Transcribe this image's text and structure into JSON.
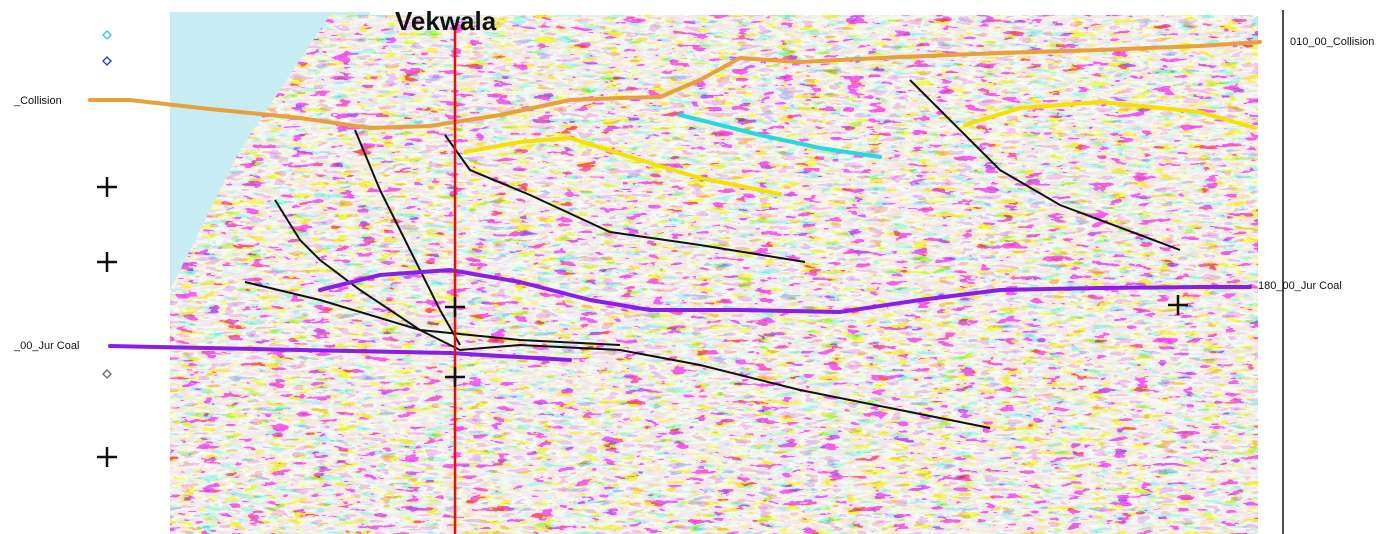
{
  "well": {
    "name": "Vekwala"
  },
  "horizons": [
    {
      "left_label": "_Collision",
      "right_label": "010_00_Collision"
    },
    {
      "left_label": "_00_Jur Coal",
      "right_label": "180_00_Jur Coal"
    }
  ]
}
